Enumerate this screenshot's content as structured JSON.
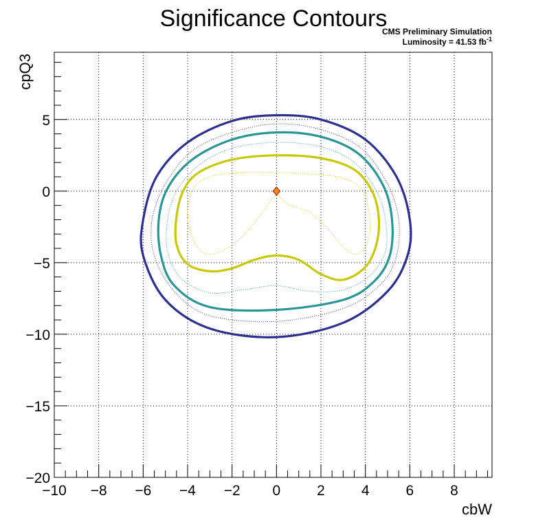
{
  "chart_data": {
    "type": "contour",
    "title": "Significance Contours",
    "annotation_line1": "CMS Preliminary Simulation",
    "annotation_line2_prefix": "Luminosity = 41.53 fb",
    "annotation_line2_sup": "-1",
    "xlabel": "cbW",
    "ylabel": "cpQ3",
    "xlim": [
      -10,
      9.7
    ],
    "ylim": [
      -20,
      9.7
    ],
    "xticks": [
      -10,
      -8,
      -6,
      -4,
      -2,
      0,
      2,
      4,
      6,
      8
    ],
    "xtick_labels": [
      "−10",
      "−8",
      "−6",
      "−4",
      "−2",
      "0",
      "2",
      "4",
      "6",
      "8"
    ],
    "yticks": [
      -20,
      -15,
      -10,
      -5,
      0,
      5
    ],
    "ytick_labels": [
      "−20",
      "−15",
      "−10",
      "−5",
      "0",
      "5"
    ],
    "grid": true,
    "best_fit_point": {
      "x": 0,
      "y": 0
    },
    "colors": {
      "outer": "#2e2e8f",
      "middle": "#2a9595",
      "inner": "#c8c800",
      "marker_fill": "#ff8c00",
      "marker_edge": "#b22222"
    },
    "contours": [
      {
        "color": "outer",
        "style": "solid",
        "points": [
          [
            0,
            5.3
          ],
          [
            2,
            5.0
          ],
          [
            4,
            3.6
          ],
          [
            5.4,
            1.0
          ],
          [
            6,
            -2
          ],
          [
            5.9,
            -4.5
          ],
          [
            5,
            -7
          ],
          [
            3,
            -9.2
          ],
          [
            0,
            -10.2
          ],
          [
            -3,
            -9.6
          ],
          [
            -5,
            -7.6
          ],
          [
            -6,
            -4.5
          ],
          [
            -6,
            -2
          ],
          [
            -5.4,
            1
          ],
          [
            -4,
            3.4
          ],
          [
            -2,
            4.9
          ],
          [
            0,
            5.3
          ]
        ]
      },
      {
        "color": "outer",
        "style": "dotted",
        "points": [
          [
            0,
            4.7
          ],
          [
            2,
            4.3
          ],
          [
            3.8,
            3.0
          ],
          [
            5,
            0.5
          ],
          [
            5.5,
            -2
          ],
          [
            5.4,
            -4.5
          ],
          [
            4.7,
            -6.5
          ],
          [
            3,
            -8.2
          ],
          [
            0,
            -9.1
          ],
          [
            -3,
            -8.7
          ],
          [
            -4.6,
            -7
          ],
          [
            -5.5,
            -4.5
          ],
          [
            -5.6,
            -2
          ],
          [
            -5,
            0.5
          ],
          [
            -3.8,
            2.8
          ],
          [
            -2,
            4.1
          ],
          [
            0,
            4.7
          ]
        ]
      },
      {
        "color": "middle",
        "style": "solid",
        "points": [
          [
            0,
            4.1
          ],
          [
            2,
            3.8
          ],
          [
            3.7,
            2.6
          ],
          [
            4.8,
            0.4
          ],
          [
            5.2,
            -2
          ],
          [
            5.1,
            -4.5
          ],
          [
            4.4,
            -6.3
          ],
          [
            3,
            -7.6
          ],
          [
            0,
            -8.3
          ],
          [
            -3,
            -8.1
          ],
          [
            -4.6,
            -6.6
          ],
          [
            -5.2,
            -4.5
          ],
          [
            -5.3,
            -2
          ],
          [
            -4.9,
            0.2
          ],
          [
            -3.8,
            2.2
          ],
          [
            -2,
            3.6
          ],
          [
            0,
            4.1
          ]
        ]
      },
      {
        "color": "middle",
        "style": "dotted",
        "points": [
          [
            0,
            3.4
          ],
          [
            2,
            3.1
          ],
          [
            3.5,
            2.0
          ],
          [
            4.5,
            0
          ],
          [
            4.9,
            -2
          ],
          [
            4.9,
            -4.2
          ],
          [
            4.2,
            -5.9
          ],
          [
            3,
            -6.9
          ],
          [
            1.5,
            -7.0
          ],
          [
            0,
            -6.6
          ],
          [
            -1.5,
            -6.9
          ],
          [
            -3,
            -7.1
          ],
          [
            -4.3,
            -6.1
          ],
          [
            -4.9,
            -4.2
          ],
          [
            -4.9,
            -2
          ],
          [
            -4.5,
            0
          ],
          [
            -3.5,
            1.8
          ],
          [
            -2,
            3.0
          ],
          [
            0,
            3.4
          ]
        ]
      },
      {
        "color": "inner",
        "style": "solid",
        "points": [
          [
            0,
            2.5
          ],
          [
            2,
            2.3
          ],
          [
            3.5,
            1.5
          ],
          [
            4.3,
            0
          ],
          [
            4.6,
            -1.8
          ],
          [
            4.5,
            -3.7
          ],
          [
            4,
            -5.3
          ],
          [
            3,
            -6.2
          ],
          [
            2,
            -5.8
          ],
          [
            1,
            -4.8
          ],
          [
            0,
            -4.5
          ],
          [
            -1,
            -4.8
          ],
          [
            -2,
            -5.4
          ],
          [
            -3,
            -5.6
          ],
          [
            -4,
            -5.1
          ],
          [
            -4.5,
            -3.7
          ],
          [
            -4.5,
            -1.8
          ],
          [
            -4.2,
            0
          ],
          [
            -3.5,
            1.3
          ],
          [
            -2,
            2.2
          ],
          [
            0,
            2.5
          ]
        ]
      },
      {
        "color": "inner",
        "style": "dotted",
        "points": [
          [
            -1.5,
            1.3
          ],
          [
            -3,
            1.0
          ],
          [
            -3.8,
            0
          ],
          [
            -4.0,
            -2
          ],
          [
            -3.6,
            -3.8
          ],
          [
            -3,
            -4.4
          ],
          [
            -2,
            -3.8
          ],
          [
            -1.2,
            -2.6
          ],
          [
            -0.5,
            -1.2
          ],
          [
            0,
            -0.3
          ],
          [
            0.5,
            -0.9
          ],
          [
            1.5,
            -1.5
          ],
          [
            2.3,
            -2.6
          ],
          [
            3,
            -3.9
          ],
          [
            3.6,
            -4.4
          ],
          [
            4.1,
            -3.6
          ],
          [
            4.2,
            -2
          ],
          [
            3.9,
            0
          ],
          [
            3,
            0.9
          ],
          [
            1.5,
            1.2
          ],
          [
            0,
            1.3
          ],
          [
            -1.5,
            1.3
          ]
        ]
      }
    ]
  }
}
